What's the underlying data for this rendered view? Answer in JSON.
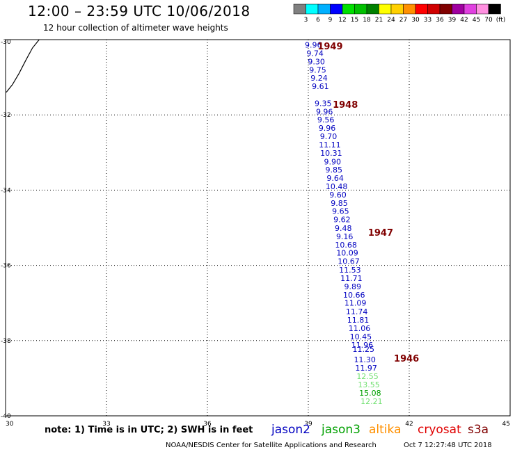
{
  "header": {
    "title": "12:00 – 23:59 UTC 10/06/2018",
    "subtitle": "12 hour collection of altimeter wave heights"
  },
  "colorbar": {
    "colors": [
      "#808080",
      "#00ffff",
      "#00b0ff",
      "#0000ff",
      "#00e000",
      "#00c000",
      "#008000",
      "#ffff00",
      "#ffd000",
      "#ff9000",
      "#ff0000",
      "#d00000",
      "#800000",
      "#a000a0",
      "#e040e0",
      "#ff90e0",
      "#000000"
    ],
    "labels": [
      "3",
      "6",
      "9",
      "12",
      "15",
      "18",
      "21",
      "24",
      "27",
      "30",
      "33",
      "36",
      "39",
      "42",
      "45",
      "70",
      "(ft)"
    ]
  },
  "axes": {
    "x_ticks": [
      "30",
      "33",
      "36",
      "39",
      "42",
      "45"
    ],
    "y_ticks": [
      "-30",
      "-32",
      "-34",
      "-36",
      "-38",
      "-40"
    ],
    "x_range": [
      30,
      45
    ],
    "y_range": [
      -40,
      -30
    ]
  },
  "chart_data": {
    "type": "scatter",
    "x_range": [
      30,
      45
    ],
    "y_range": [
      -40,
      -30
    ],
    "grid": true,
    "points": [
      {
        "lon": 39.15,
        "lat": -30.14,
        "label": "9.96",
        "color": "#0000c0"
      },
      {
        "lon": 39.2,
        "lat": -30.36,
        "label": "9.74",
        "color": "#0000c0"
      },
      {
        "lon": 39.24,
        "lat": -30.58,
        "label": "9.30",
        "color": "#0000c0"
      },
      {
        "lon": 39.28,
        "lat": -30.8,
        "label": "9.75",
        "color": "#0000c0"
      },
      {
        "lon": 39.32,
        "lat": -31.02,
        "label": "9.24",
        "color": "#0000c0"
      },
      {
        "lon": 39.36,
        "lat": -31.24,
        "label": "9.61",
        "color": "#0000c0"
      },
      {
        "lon": 39.44,
        "lat": -31.69,
        "label": "9.35",
        "color": "#0000c0"
      },
      {
        "lon": 39.48,
        "lat": -31.91,
        "label": "9.96",
        "color": "#0000c0"
      },
      {
        "lon": 39.52,
        "lat": -32.13,
        "label": "9.56",
        "color": "#0000c0"
      },
      {
        "lon": 39.56,
        "lat": -32.35,
        "label": "9.96",
        "color": "#0000c0"
      },
      {
        "lon": 39.6,
        "lat": -32.57,
        "label": "9.70",
        "color": "#0000c0"
      },
      {
        "lon": 39.64,
        "lat": -32.79,
        "label": "11.11",
        "color": "#0000c0"
      },
      {
        "lon": 39.68,
        "lat": -33.01,
        "label": "10.31",
        "color": "#0000c0"
      },
      {
        "lon": 39.72,
        "lat": -33.24,
        "label": "9.90",
        "color": "#0000c0"
      },
      {
        "lon": 39.76,
        "lat": -33.46,
        "label": "9.85",
        "color": "#0000c0"
      },
      {
        "lon": 39.8,
        "lat": -33.68,
        "label": "9.64",
        "color": "#0000c0"
      },
      {
        "lon": 39.84,
        "lat": -33.9,
        "label": "10.48",
        "color": "#0000c0"
      },
      {
        "lon": 39.88,
        "lat": -34.12,
        "label": "9.60",
        "color": "#0000c0"
      },
      {
        "lon": 39.92,
        "lat": -34.34,
        "label": "9.85",
        "color": "#0000c0"
      },
      {
        "lon": 39.96,
        "lat": -34.56,
        "label": "9.65",
        "color": "#0000c0"
      },
      {
        "lon": 40.0,
        "lat": -34.78,
        "label": "9.62",
        "color": "#0000c0"
      },
      {
        "lon": 40.04,
        "lat": -35.01,
        "label": "9.48",
        "color": "#0000c0"
      },
      {
        "lon": 40.08,
        "lat": -35.23,
        "label": "9.16",
        "color": "#0000c0"
      },
      {
        "lon": 40.12,
        "lat": -35.45,
        "label": "10.68",
        "color": "#0000c0"
      },
      {
        "lon": 40.16,
        "lat": -35.67,
        "label": "10.09",
        "color": "#0000c0"
      },
      {
        "lon": 40.2,
        "lat": -35.89,
        "label": "10.67",
        "color": "#0000c0"
      },
      {
        "lon": 40.24,
        "lat": -36.12,
        "label": "11.53",
        "color": "#0000c0"
      },
      {
        "lon": 40.28,
        "lat": -36.34,
        "label": "11.71",
        "color": "#0000c0"
      },
      {
        "lon": 40.32,
        "lat": -36.56,
        "label": "9.89",
        "color": "#0000c0"
      },
      {
        "lon": 40.36,
        "lat": -36.78,
        "label": "10.66",
        "color": "#0000c0"
      },
      {
        "lon": 40.4,
        "lat": -37.0,
        "label": "11.09",
        "color": "#0000c0"
      },
      {
        "lon": 40.44,
        "lat": -37.23,
        "label": "11.74",
        "color": "#0000c0"
      },
      {
        "lon": 40.48,
        "lat": -37.45,
        "label": "11.81",
        "color": "#0000c0"
      },
      {
        "lon": 40.52,
        "lat": -37.67,
        "label": "11.06",
        "color": "#0000c0"
      },
      {
        "lon": 40.56,
        "lat": -37.89,
        "label": "10.45",
        "color": "#0000c0"
      },
      {
        "lon": 40.6,
        "lat": -38.11,
        "label": "11.96",
        "color": "#0000c0"
      },
      {
        "lon": 40.64,
        "lat": -38.23,
        "label": "11.25",
        "color": "#0000c0"
      },
      {
        "lon": 40.68,
        "lat": -38.5,
        "label": "11.30",
        "color": "#0000c0"
      },
      {
        "lon": 40.72,
        "lat": -38.72,
        "label": "11.97",
        "color": "#0000c0"
      },
      {
        "lon": 40.76,
        "lat": -38.95,
        "label": "12.55",
        "color": "#70e070"
      },
      {
        "lon": 40.8,
        "lat": -39.17,
        "label": "13.55",
        "color": "#70e070"
      },
      {
        "lon": 40.84,
        "lat": -39.39,
        "label": "15.08",
        "color": "#00a000"
      },
      {
        "lon": 40.88,
        "lat": -39.61,
        "label": "12.21",
        "color": "#70e070"
      }
    ],
    "times": [
      {
        "lon": 39.65,
        "lat": -30.17,
        "label": "1949"
      },
      {
        "lon": 40.1,
        "lat": -31.72,
        "label": "1948"
      },
      {
        "lon": 41.15,
        "lat": -35.12,
        "label": "1947"
      },
      {
        "lon": 41.92,
        "lat": -38.47,
        "label": "1946"
      }
    ],
    "coast": [
      [
        31.0,
        -30.0
      ],
      [
        30.8,
        -30.22
      ],
      [
        30.6,
        -30.55
      ],
      [
        30.4,
        -30.9
      ],
      [
        30.2,
        -31.2
      ],
      [
        30.02,
        -31.4
      ]
    ]
  },
  "legend": {
    "satellites": [
      {
        "name": "jason2",
        "color": "#0000c0"
      },
      {
        "name": "jason3",
        "color": "#00a000"
      },
      {
        "name": "altika",
        "color": "#ff9000"
      },
      {
        "name": "cryosat",
        "color": "#e00000"
      },
      {
        "name": "s3a",
        "color": "#800000"
      }
    ]
  },
  "footer": {
    "note": "note: 1) Time is in UTC; 2) SWH is in feet",
    "credit": "NOAA/NESDIS Center for Satellite Applications and Research",
    "timestamp": "Oct  7 12:27:48 UTC 2018"
  }
}
